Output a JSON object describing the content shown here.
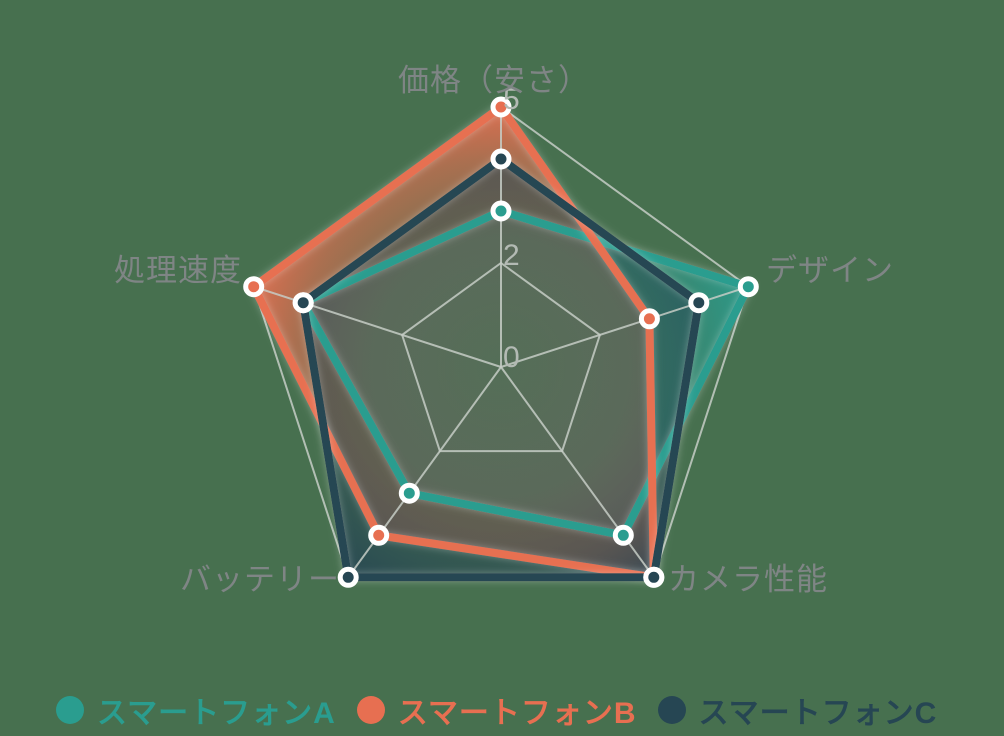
{
  "chart_data": {
    "type": "radar",
    "title": "",
    "categories": [
      "価格（安さ）",
      "デザイン",
      "カメラ性能",
      "バッテリー",
      "処理速度"
    ],
    "series": [
      {
        "name": "スマートフォンA",
        "color": "#2a9d8f",
        "values": [
          3,
          5,
          4,
          3,
          4
        ]
      },
      {
        "name": "スマートフォンB",
        "color": "#e76f51",
        "values": [
          5,
          3,
          5,
          4,
          5
        ]
      },
      {
        "name": "スマートフォンC",
        "color": "#264653",
        "values": [
          4,
          4,
          5,
          5,
          4
        ]
      }
    ],
    "scale": {
      "min": 0,
      "max": 5,
      "tick_labels": [
        "0",
        "2",
        "5"
      ],
      "ring_values": [
        2,
        5
      ]
    },
    "legend_position": "bottom",
    "axis_start": "top",
    "background_color": "#47704f",
    "gridline_color": "#c6ccc6",
    "axis_label_color": "#7f8585",
    "tick_label_color": "#b3bab4",
    "marker_ring_color": "#ffffff"
  }
}
